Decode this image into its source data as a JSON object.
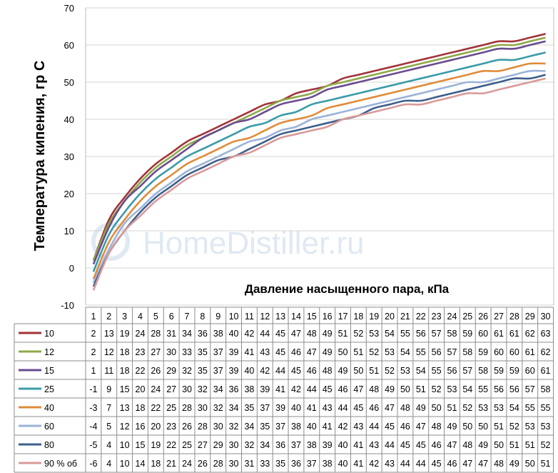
{
  "watermark": "HomeDistiller.ru",
  "chart_data": {
    "type": "line",
    "title": "",
    "ylabel": "Температура кипения, гр С",
    "xlabel": "Давление насыщенного пара, кПа",
    "ylim": [
      -10,
      70
    ],
    "yticks": [
      -10,
      0,
      10,
      20,
      30,
      40,
      50,
      60,
      70
    ],
    "grid": true,
    "legend": "data-table-left",
    "x": [
      1,
      2,
      3,
      4,
      5,
      6,
      7,
      8,
      9,
      10,
      11,
      12,
      13,
      14,
      15,
      16,
      17,
      18,
      19,
      20,
      21,
      22,
      23,
      24,
      25,
      26,
      27,
      28,
      29,
      30
    ],
    "series": [
      {
        "name": "10",
        "color": "#a2343a",
        "values": [
          2,
          13,
          19,
          24,
          28,
          31,
          34,
          36,
          38,
          40,
          42,
          44,
          45,
          47,
          48,
          49,
          51,
          52,
          53,
          54,
          55,
          56,
          57,
          58,
          59,
          60,
          61,
          61,
          62,
          63
        ]
      },
      {
        "name": "12",
        "color": "#8eaa48",
        "values": [
          2,
          12,
          18,
          23,
          27,
          30,
          33,
          35,
          37,
          39,
          41,
          43,
          45,
          46,
          47,
          49,
          50,
          51,
          52,
          53,
          54,
          55,
          56,
          57,
          58,
          59,
          60,
          60,
          61,
          62
        ]
      },
      {
        "name": "15",
        "color": "#6a4c8f",
        "values": [
          1,
          11,
          18,
          22,
          26,
          29,
          32,
          35,
          37,
          39,
          40,
          42,
          44,
          45,
          46,
          48,
          49,
          50,
          51,
          52,
          53,
          54,
          55,
          56,
          57,
          58,
          59,
          59,
          60,
          61
        ]
      },
      {
        "name": "25",
        "color": "#3a9ba8",
        "values": [
          -1,
          9,
          15,
          20,
          24,
          27,
          30,
          32,
          34,
          36,
          38,
          39,
          41,
          42,
          44,
          45,
          46,
          47,
          48,
          49,
          50,
          51,
          52,
          53,
          54,
          55,
          56,
          56,
          57,
          58
        ]
      },
      {
        "name": "40",
        "color": "#e08b3a",
        "values": [
          -3,
          7,
          13,
          18,
          22,
          25,
          28,
          30,
          32,
          34,
          35,
          37,
          39,
          40,
          41,
          43,
          44,
          45,
          46,
          47,
          48,
          49,
          50,
          51,
          52,
          53,
          53,
          54,
          55,
          55
        ]
      },
      {
        "name": "60",
        "color": "#9bb3d9",
        "values": [
          -4,
          5,
          12,
          16,
          20,
          23,
          26,
          28,
          30,
          32,
          34,
          35,
          37,
          38,
          40,
          41,
          42,
          43,
          44,
          45,
          46,
          47,
          48,
          49,
          50,
          50,
          51,
          52,
          53,
          53
        ]
      },
      {
        "name": "80",
        "color": "#3d5f8c",
        "values": [
          -5,
          4,
          10,
          15,
          19,
          22,
          25,
          27,
          29,
          30,
          32,
          34,
          36,
          37,
          38,
          39,
          40,
          41,
          43,
          44,
          45,
          45,
          46,
          47,
          48,
          49,
          50,
          51,
          51,
          52
        ]
      },
      {
        "name": "90 % об",
        "color": "#d99a9a",
        "values": [
          -6,
          4,
          10,
          14,
          18,
          21,
          24,
          26,
          28,
          30,
          31,
          33,
          35,
          36,
          37,
          38,
          40,
          41,
          42,
          43,
          44,
          44,
          45,
          46,
          47,
          47,
          48,
          49,
          50,
          51
        ]
      }
    ]
  }
}
